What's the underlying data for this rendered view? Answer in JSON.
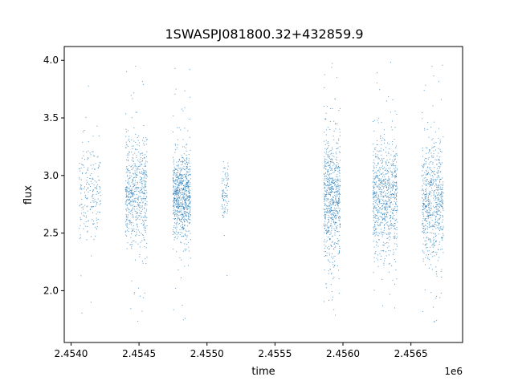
{
  "chart_data": {
    "type": "scatter",
    "title": "1SWASPJ081800.32+432859.9",
    "xlabel": "time",
    "ylabel": "flux",
    "x_offset_label": "1e6",
    "xlim": [
      2.45395,
      2.45688
    ],
    "ylim": [
      1.55,
      4.12
    ],
    "x_ticks": [
      2.454,
      2.4545,
      2.455,
      2.4555,
      2.456,
      2.4565
    ],
    "x_tick_labels": [
      "2.4540",
      "2.4545",
      "2.4550",
      "2.4555",
      "2.4560",
      "2.4565"
    ],
    "y_ticks": [
      2.0,
      2.5,
      3.0,
      3.5,
      4.0
    ],
    "y_tick_labels": [
      "2.0",
      "2.5",
      "3.0",
      "3.5",
      "4.0"
    ],
    "grid": false,
    "legend": "none",
    "point_color": "#1f77b4",
    "series": [
      {
        "clusters": [
          {
            "x_range": [
              2.45406,
              2.45422
            ],
            "flux_center": 2.85,
            "flux_spread": 0.22,
            "flux_range": [
              1.68,
              4.02
            ],
            "density": 0.35
          },
          {
            "x_range": [
              2.4544,
              2.45456
            ],
            "flux_center": 2.85,
            "flux_spread": 0.24,
            "flux_range": [
              1.7,
              4.02
            ],
            "density": 1.0
          },
          {
            "x_range": [
              2.45475,
              2.45488
            ],
            "flux_center": 2.82,
            "flux_spread": 0.18,
            "flux_range": [
              1.72,
              3.98
            ],
            "density": 1.3
          },
          {
            "x_range": [
              2.45511,
              2.45516
            ],
            "flux_center": 2.85,
            "flux_spread": 0.12,
            "flux_range": [
              1.9,
              3.5
            ],
            "density": 0.15
          },
          {
            "x_range": [
              2.45586,
              2.45598
            ],
            "flux_center": 2.82,
            "flux_spread": 0.28,
            "flux_range": [
              1.75,
              4.0
            ],
            "density": 1.2
          },
          {
            "x_range": [
              2.45622,
              2.4564
            ],
            "flux_center": 2.82,
            "flux_spread": 0.26,
            "flux_range": [
              1.8,
              4.02
            ],
            "density": 1.3
          },
          {
            "x_range": [
              2.45658,
              2.45674
            ],
            "flux_center": 2.78,
            "flux_spread": 0.25,
            "flux_range": [
              1.7,
              4.02
            ],
            "density": 1.1
          }
        ]
      }
    ]
  }
}
